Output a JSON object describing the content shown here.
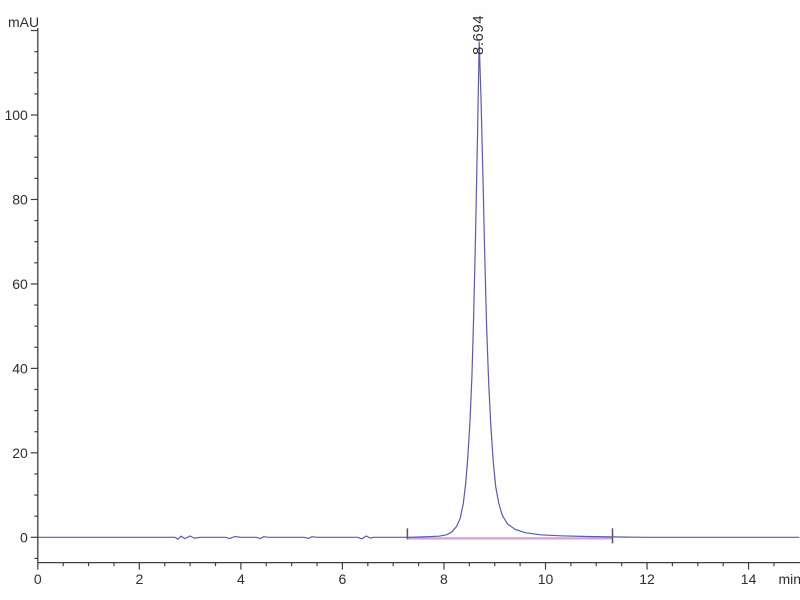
{
  "chart_data": {
    "type": "line",
    "title": "",
    "xlabel": "min",
    "ylabel": "mAU",
    "xlim": [
      0,
      15.0
    ],
    "ylim": [
      -6,
      120.6
    ],
    "grid": false,
    "legend": "none",
    "x_major_tick_step": 2,
    "x_minor_tick_step": 0.5,
    "x_label_ticks": [
      0,
      2,
      4,
      6,
      8,
      10,
      12,
      14
    ],
    "y_major_tick_step": 20,
    "y_minor_tick_step": 5,
    "y_label_ticks": [
      0,
      20,
      40,
      60,
      80,
      100
    ],
    "axis_color": "#3f3f3f",
    "text_color": "#2f2f2f",
    "background_color": "#fefefe",
    "series": [
      {
        "name": "detector-signal",
        "color": "#5b5bab",
        "points": [
          [
            0,
            0
          ],
          [
            0.5,
            0
          ],
          [
            1,
            0
          ],
          [
            1.5,
            0
          ],
          [
            2,
            0
          ],
          [
            2.5,
            0
          ],
          [
            2.7,
            0
          ],
          [
            2.76,
            -0.45
          ],
          [
            2.82,
            0.25
          ],
          [
            2.9,
            -0.3
          ],
          [
            3.0,
            0.3
          ],
          [
            3.08,
            -0.2
          ],
          [
            3.2,
            0
          ],
          [
            3.7,
            0
          ],
          [
            3.78,
            -0.3
          ],
          [
            3.88,
            0.2
          ],
          [
            4.0,
            0
          ],
          [
            4.3,
            0
          ],
          [
            4.38,
            -0.3
          ],
          [
            4.45,
            0.15
          ],
          [
            4.55,
            0
          ],
          [
            5.25,
            0
          ],
          [
            5.33,
            -0.25
          ],
          [
            5.4,
            0.15
          ],
          [
            5.5,
            0
          ],
          [
            6.3,
            0
          ],
          [
            6.38,
            -0.35
          ],
          [
            6.47,
            0.3
          ],
          [
            6.55,
            -0.2
          ],
          [
            6.62,
            0
          ],
          [
            7.0,
            0
          ],
          [
            7.28,
            0
          ],
          [
            7.6,
            0.1
          ],
          [
            7.9,
            0.25
          ],
          [
            8.05,
            0.6
          ],
          [
            8.15,
            1.2
          ],
          [
            8.25,
            2.6
          ],
          [
            8.32,
            4.5
          ],
          [
            8.38,
            8
          ],
          [
            8.43,
            13
          ],
          [
            8.47,
            19
          ],
          [
            8.51,
            27
          ],
          [
            8.55,
            38
          ],
          [
            8.58,
            50
          ],
          [
            8.62,
            70
          ],
          [
            8.66,
            95
          ],
          [
            8.694,
            117.3
          ],
          [
            8.73,
            104
          ],
          [
            8.77,
            84
          ],
          [
            8.8,
            68
          ],
          [
            8.84,
            50
          ],
          [
            8.88,
            37
          ],
          [
            8.92,
            27
          ],
          [
            8.97,
            18
          ],
          [
            9.02,
            12
          ],
          [
            9.08,
            8
          ],
          [
            9.15,
            5.2
          ],
          [
            9.25,
            3.2
          ],
          [
            9.4,
            1.9
          ],
          [
            9.6,
            1.1
          ],
          [
            9.9,
            0.6
          ],
          [
            10.3,
            0.35
          ],
          [
            10.8,
            0.2
          ],
          [
            11.3,
            0.1
          ],
          [
            11.6,
            0.05
          ],
          [
            12,
            0
          ],
          [
            13,
            0
          ],
          [
            14,
            0
          ],
          [
            15,
            0
          ]
        ]
      },
      {
        "name": "integration-baseline",
        "color": "#d79fd7",
        "points": [
          [
            7.28,
            -0.25
          ],
          [
            11.32,
            -0.25
          ]
        ],
        "end_marker_color": "#5f4f68"
      }
    ],
    "peaks": [
      {
        "retention_time_label": "8.694",
        "time": 8.694,
        "height_mAU": 117.3,
        "label_color": "#363669"
      }
    ]
  }
}
